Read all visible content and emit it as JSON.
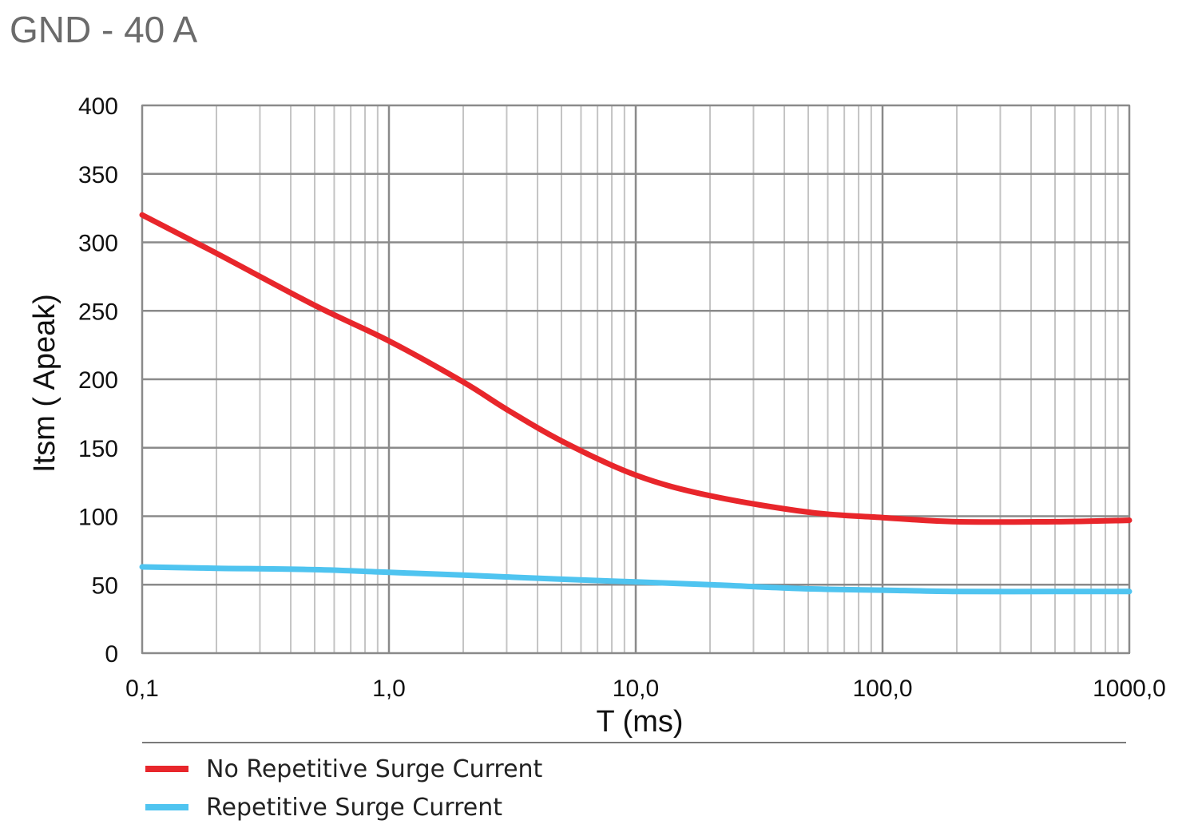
{
  "chart_data": {
    "type": "line",
    "title": "GND - 40 A",
    "xlabel": "T (ms)",
    "ylabel": "Itsm ( Apeak)",
    "xscale": "log",
    "xlim": [
      0.1,
      1000
    ],
    "ylim": [
      0,
      400
    ],
    "x_ticks": [
      0.1,
      1,
      10,
      100,
      1000
    ],
    "x_tick_labels": [
      "0,1",
      "1,0",
      "10,0",
      "100,0",
      "1000,0"
    ],
    "y_ticks": [
      0,
      50,
      100,
      150,
      200,
      250,
      300,
      350,
      400
    ],
    "y_tick_labels": [
      "0",
      "50",
      "100",
      "150",
      "200",
      "250",
      "300",
      "350",
      "400"
    ],
    "grid": true,
    "legend_position": "bottom",
    "series": [
      {
        "name": "No Repetitive Surge Current",
        "color": "#e8262b",
        "x": [
          0.1,
          0.2,
          0.5,
          1,
          2,
          3,
          5,
          10,
          20,
          50,
          100,
          200,
          500,
          1000
        ],
        "y": [
          320,
          292,
          254,
          228,
          198,
          178,
          155,
          130,
          115,
          103,
          99,
          96,
          96,
          97
        ]
      },
      {
        "name": "Repetitive Surge Current",
        "color": "#4fc4f0",
        "x": [
          0.1,
          0.2,
          0.5,
          1,
          2,
          5,
          10,
          20,
          50,
          100,
          200,
          500,
          1000
        ],
        "y": [
          63,
          62,
          61,
          59,
          57,
          54,
          52,
          50,
          47,
          46,
          45,
          45,
          45
        ]
      }
    ]
  }
}
